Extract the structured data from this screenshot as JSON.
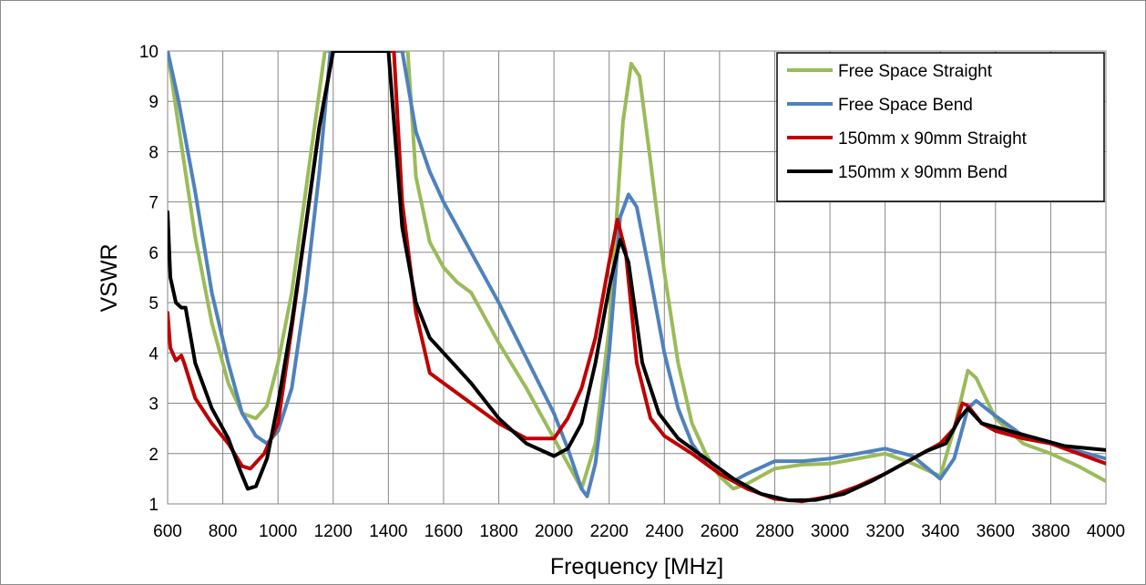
{
  "chart_data": {
    "type": "line",
    "title": "",
    "xlabel": "Frequency [MHz]",
    "ylabel": "VSWR",
    "xlim": [
      600,
      4000
    ],
    "ylim": [
      1,
      10
    ],
    "x_ticks": [
      "600",
      "800",
      "1000",
      "1200",
      "1400",
      "1600",
      "1800",
      "2000",
      "2200",
      "2400",
      "2600",
      "2800",
      "3000",
      "3200",
      "3400",
      "3600",
      "3800",
      "4000"
    ],
    "y_ticks": [
      "1",
      "2",
      "3",
      "4",
      "5",
      "6",
      "7",
      "8",
      "9",
      "10"
    ],
    "grid": true,
    "legend_position": "top-right",
    "series": [
      {
        "name": "Free Space Straight",
        "color": "#9bbb59",
        "points": [
          [
            600,
            10
          ],
          [
            640,
            8.5
          ],
          [
            700,
            6.3
          ],
          [
            760,
            4.6
          ],
          [
            820,
            3.4
          ],
          [
            870,
            2.8
          ],
          [
            920,
            2.7
          ],
          [
            960,
            2.95
          ],
          [
            1000,
            3.8
          ],
          [
            1050,
            5.2
          ],
          [
            1100,
            7.2
          ],
          [
            1150,
            9.2
          ],
          [
            1170,
            10
          ],
          [
            1470,
            10
          ],
          [
            1500,
            7.5
          ],
          [
            1550,
            6.2
          ],
          [
            1600,
            5.7
          ],
          [
            1650,
            5.4
          ],
          [
            1700,
            5.2
          ],
          [
            1800,
            4.2
          ],
          [
            1900,
            3.3
          ],
          [
            2000,
            2.3
          ],
          [
            2050,
            1.8
          ],
          [
            2100,
            1.3
          ],
          [
            2150,
            2.2
          ],
          [
            2200,
            4.5
          ],
          [
            2250,
            8.6
          ],
          [
            2280,
            9.75
          ],
          [
            2310,
            9.5
          ],
          [
            2350,
            7.8
          ],
          [
            2400,
            5.6
          ],
          [
            2450,
            3.8
          ],
          [
            2500,
            2.6
          ],
          [
            2550,
            2.0
          ],
          [
            2600,
            1.55
          ],
          [
            2650,
            1.3
          ],
          [
            2700,
            1.4
          ],
          [
            2800,
            1.7
          ],
          [
            2900,
            1.78
          ],
          [
            3000,
            1.8
          ],
          [
            3100,
            1.9
          ],
          [
            3200,
            2.0
          ],
          [
            3300,
            1.8
          ],
          [
            3400,
            1.55
          ],
          [
            3450,
            2.5
          ],
          [
            3500,
            3.65
          ],
          [
            3530,
            3.5
          ],
          [
            3600,
            2.7
          ],
          [
            3700,
            2.2
          ],
          [
            3800,
            2.0
          ],
          [
            3900,
            1.75
          ],
          [
            4000,
            1.45
          ]
        ]
      },
      {
        "name": "Free Space Bend",
        "color": "#4f81bd",
        "points": [
          [
            600,
            10
          ],
          [
            640,
            9.0
          ],
          [
            700,
            7.2
          ],
          [
            760,
            5.2
          ],
          [
            820,
            3.8
          ],
          [
            870,
            2.8
          ],
          [
            920,
            2.35
          ],
          [
            960,
            2.2
          ],
          [
            1000,
            2.45
          ],
          [
            1050,
            3.3
          ],
          [
            1100,
            5.2
          ],
          [
            1150,
            7.6
          ],
          [
            1190,
            10
          ],
          [
            1450,
            10
          ],
          [
            1500,
            8.4
          ],
          [
            1550,
            7.6
          ],
          [
            1600,
            7.0
          ],
          [
            1650,
            6.5
          ],
          [
            1700,
            6.0
          ],
          [
            1800,
            5.0
          ],
          [
            1900,
            3.9
          ],
          [
            2000,
            2.8
          ],
          [
            2050,
            2.1
          ],
          [
            2100,
            1.3
          ],
          [
            2120,
            1.15
          ],
          [
            2150,
            1.8
          ],
          [
            2200,
            4.0
          ],
          [
            2240,
            6.7
          ],
          [
            2270,
            7.15
          ],
          [
            2300,
            6.9
          ],
          [
            2350,
            5.5
          ],
          [
            2400,
            4.0
          ],
          [
            2450,
            2.9
          ],
          [
            2500,
            2.2
          ],
          [
            2550,
            1.8
          ],
          [
            2600,
            1.6
          ],
          [
            2650,
            1.45
          ],
          [
            2700,
            1.6
          ],
          [
            2800,
            1.85
          ],
          [
            2900,
            1.85
          ],
          [
            3000,
            1.9
          ],
          [
            3100,
            2.0
          ],
          [
            3200,
            2.1
          ],
          [
            3300,
            1.95
          ],
          [
            3400,
            1.5
          ],
          [
            3450,
            1.9
          ],
          [
            3500,
            2.9
          ],
          [
            3530,
            3.05
          ],
          [
            3600,
            2.75
          ],
          [
            3700,
            2.35
          ],
          [
            3800,
            2.2
          ],
          [
            3900,
            2.05
          ],
          [
            4000,
            1.9
          ]
        ]
      },
      {
        "name": "150mm x 90mm Straight",
        "color": "#c00000",
        "points": [
          [
            600,
            4.8
          ],
          [
            610,
            4.1
          ],
          [
            630,
            3.85
          ],
          [
            650,
            3.95
          ],
          [
            660,
            3.8
          ],
          [
            700,
            3.1
          ],
          [
            760,
            2.6
          ],
          [
            820,
            2.2
          ],
          [
            870,
            1.75
          ],
          [
            900,
            1.7
          ],
          [
            950,
            2.0
          ],
          [
            1000,
            2.6
          ],
          [
            1050,
            4.5
          ],
          [
            1100,
            6.5
          ],
          [
            1150,
            8.5
          ],
          [
            1200,
            10
          ],
          [
            1420,
            10
          ],
          [
            1450,
            7.0
          ],
          [
            1500,
            4.8
          ],
          [
            1550,
            3.6
          ],
          [
            1600,
            3.4
          ],
          [
            1700,
            3.0
          ],
          [
            1800,
            2.6
          ],
          [
            1900,
            2.3
          ],
          [
            2000,
            2.3
          ],
          [
            2050,
            2.7
          ],
          [
            2100,
            3.3
          ],
          [
            2150,
            4.3
          ],
          [
            2200,
            5.8
          ],
          [
            2230,
            6.65
          ],
          [
            2260,
            6.0
          ],
          [
            2300,
            3.8
          ],
          [
            2350,
            2.7
          ],
          [
            2400,
            2.35
          ],
          [
            2500,
            2.0
          ],
          [
            2600,
            1.6
          ],
          [
            2700,
            1.3
          ],
          [
            2800,
            1.1
          ],
          [
            2900,
            1.05
          ],
          [
            3000,
            1.15
          ],
          [
            3100,
            1.35
          ],
          [
            3200,
            1.6
          ],
          [
            3300,
            1.9
          ],
          [
            3400,
            2.2
          ],
          [
            3450,
            2.5
          ],
          [
            3480,
            3.0
          ],
          [
            3500,
            2.95
          ],
          [
            3550,
            2.6
          ],
          [
            3600,
            2.45
          ],
          [
            3700,
            2.3
          ],
          [
            3800,
            2.2
          ],
          [
            3900,
            2.0
          ],
          [
            4000,
            1.8
          ]
        ]
      },
      {
        "name": "150mm x 90mm Bend",
        "color": "#000000",
        "points": [
          [
            600,
            6.8
          ],
          [
            610,
            5.5
          ],
          [
            630,
            5.0
          ],
          [
            650,
            4.9
          ],
          [
            665,
            4.9
          ],
          [
            700,
            3.8
          ],
          [
            760,
            2.9
          ],
          [
            820,
            2.3
          ],
          [
            860,
            1.7
          ],
          [
            890,
            1.3
          ],
          [
            920,
            1.35
          ],
          [
            960,
            1.9
          ],
          [
            1000,
            3.0
          ],
          [
            1050,
            4.6
          ],
          [
            1100,
            6.5
          ],
          [
            1150,
            8.5
          ],
          [
            1200,
            10
          ],
          [
            1400,
            10
          ],
          [
            1450,
            6.5
          ],
          [
            1500,
            5.0
          ],
          [
            1550,
            4.3
          ],
          [
            1600,
            4.0
          ],
          [
            1700,
            3.4
          ],
          [
            1800,
            2.7
          ],
          [
            1900,
            2.2
          ],
          [
            2000,
            1.95
          ],
          [
            2050,
            2.1
          ],
          [
            2100,
            2.6
          ],
          [
            2150,
            3.8
          ],
          [
            2200,
            5.3
          ],
          [
            2240,
            6.25
          ],
          [
            2270,
            5.8
          ],
          [
            2320,
            3.8
          ],
          [
            2380,
            2.8
          ],
          [
            2450,
            2.3
          ],
          [
            2550,
            1.9
          ],
          [
            2650,
            1.5
          ],
          [
            2750,
            1.2
          ],
          [
            2850,
            1.07
          ],
          [
            2950,
            1.08
          ],
          [
            3050,
            1.2
          ],
          [
            3150,
            1.45
          ],
          [
            3250,
            1.75
          ],
          [
            3350,
            2.05
          ],
          [
            3420,
            2.2
          ],
          [
            3470,
            2.7
          ],
          [
            3500,
            2.9
          ],
          [
            3550,
            2.6
          ],
          [
            3650,
            2.45
          ],
          [
            3750,
            2.3
          ],
          [
            3850,
            2.15
          ],
          [
            4000,
            2.07
          ]
        ]
      }
    ]
  }
}
